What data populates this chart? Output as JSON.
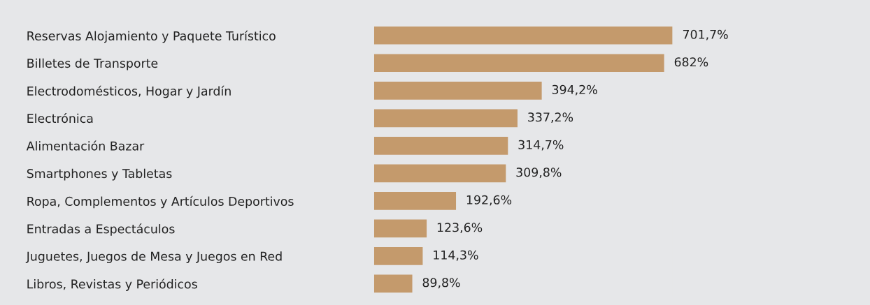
{
  "chart_data": {
    "type": "bar",
    "orientation": "horizontal",
    "categories": [
      "Reservas Alojamiento y Paquete Turístico",
      "Billetes de Transporte",
      "Electrodomésticos, Hogar y Jardín",
      "Electrónica",
      "Alimentación Bazar",
      "Smartphones y Tabletas",
      "Ropa, Complementos y Artículos Deportivos",
      "Entradas a Espectáculos",
      "Juguetes, Juegos de Mesa y Juegos en Red",
      "Libros, Revistas y Periódicos"
    ],
    "values": [
      701.7,
      682,
      394.2,
      337.2,
      314.7,
      309.8,
      192.6,
      123.6,
      114.3,
      89.8
    ],
    "value_labels": [
      "701,7%",
      "682%",
      "394,2%",
      "337,2%",
      "314,7%",
      "309,8%",
      "192,6%",
      "123,6%",
      "114,3%",
      "89,8%"
    ],
    "color": "#c49a6c",
    "grid": false,
    "legend": false
  }
}
